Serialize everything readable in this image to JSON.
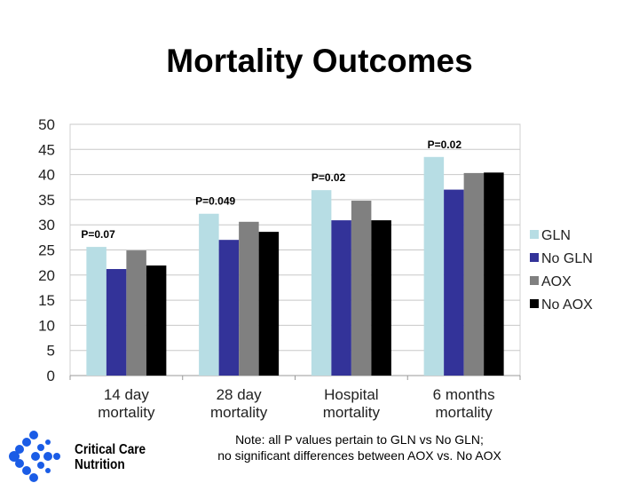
{
  "title": "Mortality Outcomes",
  "chart_data": {
    "type": "bar",
    "title": "Mortality Outcomes",
    "categories": [
      "14 day mortality",
      "28 day mortality",
      "Hospital mortality",
      "6 months mortality"
    ],
    "category_lines": [
      [
        "14 day",
        "mortality"
      ],
      [
        "28 day",
        "mortality"
      ],
      [
        "Hospital",
        "mortality"
      ],
      [
        "6 months",
        "mortality"
      ]
    ],
    "series": [
      {
        "name": "GLN",
        "color": "#b7dde4",
        "values": [
          25.6,
          32.2,
          36.9,
          43.5
        ]
      },
      {
        "name": "No GLN",
        "color": "#333399",
        "values": [
          21.2,
          27.0,
          30.9,
          37.0
        ]
      },
      {
        "name": "AOX",
        "color": "#808080",
        "values": [
          24.9,
          30.6,
          34.8,
          40.3
        ]
      },
      {
        "name": "No AOX",
        "color": "#000000",
        "values": [
          21.9,
          28.6,
          30.9,
          40.4
        ]
      }
    ],
    "annotations": [
      "P=0.07",
      "P=0.049",
      "P=0.02",
      "P=0.02"
    ],
    "ylim": [
      0,
      50
    ],
    "yticks": [
      0,
      5,
      10,
      15,
      20,
      25,
      30,
      35,
      40,
      45,
      50
    ],
    "grid": true,
    "legend": "right"
  },
  "note": [
    "Note: all P values pertain to GLN vs No GLN;",
    "no significant differences between AOX vs. No AOX"
  ],
  "logo": {
    "text": [
      "Critical Care",
      "Nutrition"
    ],
    "color": "#1a5ce6"
  }
}
